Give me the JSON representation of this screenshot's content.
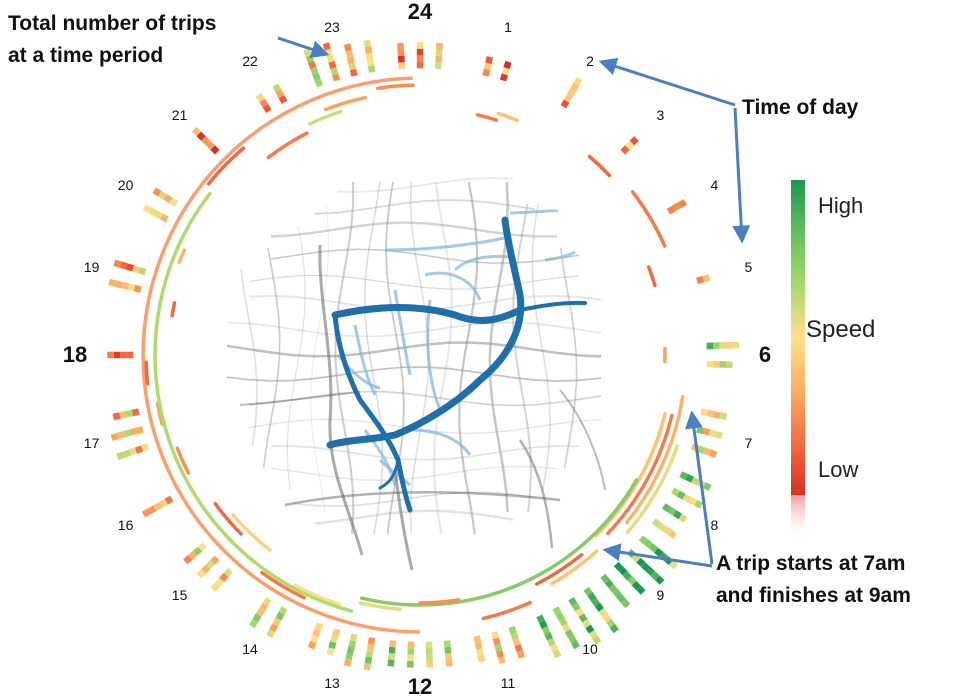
{
  "hours": [
    {
      "label": "24",
      "major": true
    },
    {
      "label": "1",
      "major": false
    },
    {
      "label": "2",
      "major": false
    },
    {
      "label": "3",
      "major": false
    },
    {
      "label": "4",
      "major": false
    },
    {
      "label": "5",
      "major": false
    },
    {
      "label": "6",
      "major": true
    },
    {
      "label": "7",
      "major": false
    },
    {
      "label": "8",
      "major": false
    },
    {
      "label": "9",
      "major": false
    },
    {
      "label": "10",
      "major": false
    },
    {
      "label": "11",
      "major": false
    },
    {
      "label": "12",
      "major": true
    },
    {
      "label": "13",
      "major": false
    },
    {
      "label": "14",
      "major": false
    },
    {
      "label": "15",
      "major": false
    },
    {
      "label": "16",
      "major": false
    },
    {
      "label": "17",
      "major": false
    },
    {
      "label": "18",
      "major": true
    },
    {
      "label": "19",
      "major": false
    },
    {
      "label": "20",
      "major": false
    },
    {
      "label": "21",
      "major": false
    },
    {
      "label": "22",
      "major": false
    },
    {
      "label": "23",
      "major": false
    }
  ],
  "annotations": {
    "total_trips": [
      "Total number of trips",
      "at a time period"
    ],
    "time_of_day": "Time of day",
    "trip_example": [
      "A trip starts at 7am",
      "and finishes at 9am"
    ]
  },
  "legend": {
    "high": "High",
    "mid": "Speed",
    "low": "Low",
    "colors": [
      "#1a9850",
      "#66bd63",
      "#a6d96a",
      "#fee08b",
      "#fdae61",
      "#f46d43",
      "#d73027"
    ]
  },
  "colors": {
    "route_main": "#1f6fa8",
    "route_light": "#7fb2d8",
    "road": "#888888",
    "arrow": "#4a7fc1"
  },
  "histogram_counts": [
    12,
    6,
    5,
    3,
    3,
    2,
    9,
    12,
    18,
    26,
    30,
    14,
    16,
    18,
    10,
    12,
    5,
    14,
    4,
    10,
    8,
    5,
    6,
    22
  ],
  "histogram_speed": [
    0.3,
    0.25,
    0.3,
    0.3,
    0.5,
    0.2,
    0.7,
    0.6,
    0.7,
    0.8,
    0.75,
    0.45,
    0.65,
    0.55,
    0.5,
    0.45,
    0.25,
    0.4,
    0.3,
    0.35,
    0.5,
    0.3,
    0.35,
    0.45
  ],
  "trips": [
    {
      "start": 5.9,
      "end": 6.1,
      "speed": 0.3
    },
    {
      "start": 6.9,
      "end": 9.05,
      "speed": 0.4
    },
    {
      "start": 6.9,
      "end": 8.9,
      "speed": 0.2
    },
    {
      "start": 6.6,
      "end": 8.6,
      "speed": 0.35
    },
    {
      "start": 7.3,
      "end": 8.7,
      "speed": 0.55
    },
    {
      "start": 8.0,
      "end": 12.9,
      "speed": 0.75
    },
    {
      "start": 9.4,
      "end": 10.2,
      "speed": 0.15
    },
    {
      "start": 9.2,
      "end": 10.0,
      "speed": 0.4
    },
    {
      "start": 10.4,
      "end": 11.1,
      "speed": 0.2
    },
    {
      "start": 11.4,
      "end": 12.0,
      "speed": 0.25
    },
    {
      "start": 12.3,
      "end": 12.9,
      "speed": 0.55
    },
    {
      "start": 13.2,
      "end": 13.9,
      "speed": 0.5
    },
    {
      "start": 13.7,
      "end": 14.4,
      "speed": 0.2
    },
    {
      "start": 14.5,
      "end": 15.3,
      "speed": 0.45
    },
    {
      "start": 15.0,
      "end": 15.6,
      "speed": 0.15
    },
    {
      "start": 16.2,
      "end": 16.6,
      "speed": 0.25
    },
    {
      "start": 17.0,
      "end": 17.3,
      "speed": 0.3
    },
    {
      "start": 17.6,
      "end": 17.9,
      "speed": 0.15
    },
    {
      "start": 18.6,
      "end": 18.8,
      "speed": 0.15
    },
    {
      "start": 19.4,
      "end": 19.6,
      "speed": 0.35
    },
    {
      "start": 13.0,
      "end": 20.5,
      "speed": 0.65
    },
    {
      "start": 20.6,
      "end": 21.3,
      "speed": 0.15
    },
    {
      "start": 21.5,
      "end": 22.2,
      "speed": 0.2
    },
    {
      "start": 22.3,
      "end": 22.8,
      "speed": 0.6
    },
    {
      "start": 22.6,
      "end": 23.2,
      "speed": 0.3
    },
    {
      "start": 23.4,
      "end": 23.9,
      "speed": 0.25
    },
    {
      "start": 0.9,
      "end": 1.2,
      "speed": 0.2
    },
    {
      "start": 1.2,
      "end": 1.5,
      "speed": 0.4
    },
    {
      "start": 2.7,
      "end": 3.1,
      "speed": 0.15
    },
    {
      "start": 3.5,
      "end": 4.4,
      "speed": 0.2
    },
    {
      "start": 4.6,
      "end": 4.9,
      "speed": 0.15
    }
  ]
}
